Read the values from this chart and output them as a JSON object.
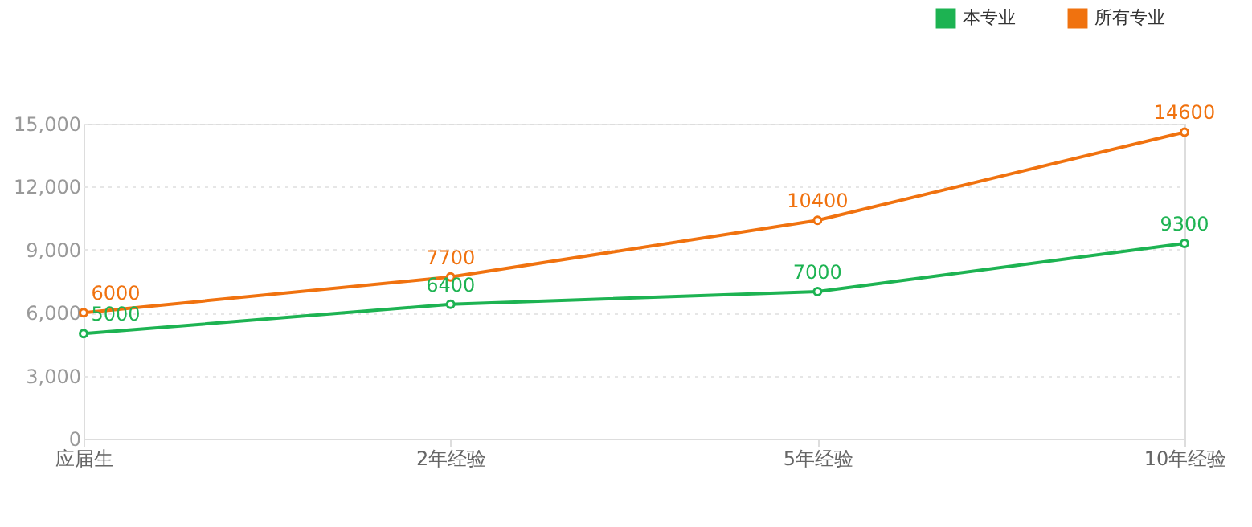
{
  "chart_data": {
    "type": "line",
    "categories": [
      "应届生",
      "2年经验",
      "5年经验",
      "10年经验"
    ],
    "series": [
      {
        "name": "本专业",
        "color": "#1db352",
        "values": [
          5000,
          6400,
          7000,
          9300
        ]
      },
      {
        "name": "所有专业",
        "color": "#f0720f",
        "values": [
          6000,
          7700,
          10400,
          14600
        ]
      }
    ],
    "ylim": [
      0,
      15000
    ],
    "yticks": [
      0,
      {
        "value": 3000,
        "label": "3,000"
      },
      {
        "value": 6000,
        "label": "6,000"
      },
      {
        "value": 9000,
        "label": "9,000"
      },
      {
        "value": 12000,
        "label": "12,000"
      },
      {
        "value": 15000,
        "label": "15,000"
      }
    ],
    "grid": "y",
    "legend": "top right",
    "marker": "circle",
    "line_style": "solid",
    "data_labels": true
  }
}
